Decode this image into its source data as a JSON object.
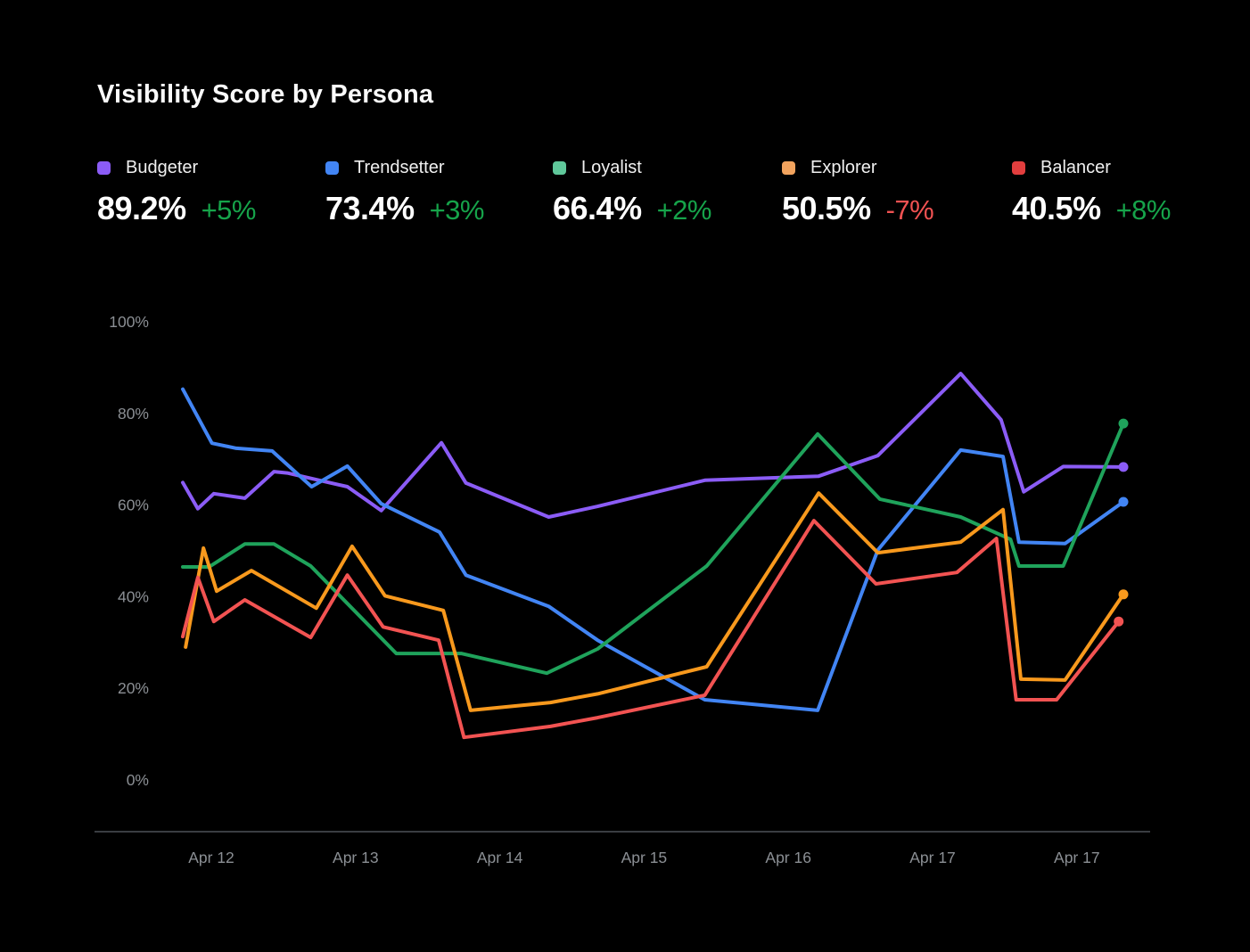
{
  "title": "Visibility Score by Persona",
  "colors": {
    "background": "#000000",
    "title_text": "#fafafa",
    "value_text": "#ffffff",
    "label_text": "#f0f0f0",
    "delta_up": "#16a34a",
    "delta_down": "#f05252",
    "axis_text": "#8b8f94",
    "axis_line": "#3a3d42"
  },
  "legend": [
    {
      "label": "Budgeter",
      "value": "89.2%",
      "delta": "+5%",
      "direction": "up",
      "swatch": "#8b5cf6"
    },
    {
      "label": "Trendsetter",
      "value": "73.4%",
      "delta": "+3%",
      "direction": "up",
      "swatch": "#4285f4"
    },
    {
      "label": "Loyalist",
      "value": "66.4%",
      "delta": "+2%",
      "direction": "up",
      "swatch": "#5fc79a"
    },
    {
      "label": "Explorer",
      "value": "50.5%",
      "delta": "-7%",
      "direction": "down",
      "swatch": "#f2a35e"
    },
    {
      "label": "Balancer",
      "value": "40.5%",
      "delta": "+8%",
      "direction": "up",
      "swatch": "#e23e3e"
    }
  ],
  "chart_data": {
    "type": "line",
    "title": "Visibility Score by Persona",
    "unit": "%",
    "grid": false,
    "y_axis": {
      "min": 0,
      "max": 100,
      "tick_step": 20,
      "tick_labels": [
        "0%",
        "20%",
        "40%",
        "60%",
        "80%",
        "100%"
      ]
    },
    "x_axis": {
      "tick_labels": [
        "Apr 12",
        "Apr 13",
        "Apr 14",
        "Apr 15",
        "Apr 16",
        "Apr 17",
        "Apr 17"
      ]
    },
    "point_format": "[x_percent_across_time_axis, visibility_percent]",
    "series": [
      {
        "name": "Budgeter",
        "color": "#8b5cf6",
        "end_dot": true,
        "points": [
          [
            0,
            64.9
          ],
          [
            1.6,
            59.2
          ],
          [
            3.3,
            62.5
          ],
          [
            6.6,
            61.5
          ],
          [
            9.7,
            67.3
          ],
          [
            11.1,
            67.0
          ],
          [
            17.5,
            64.0
          ],
          [
            21.1,
            58.8
          ],
          [
            27.5,
            73.6
          ],
          [
            30.1,
            64.8
          ],
          [
            38.9,
            57.4
          ],
          [
            44.1,
            59.7
          ],
          [
            55.5,
            65.4
          ],
          [
            67.6,
            66.3
          ],
          [
            73.9,
            70.8
          ],
          [
            82.7,
            88.7
          ],
          [
            87.0,
            78.6
          ],
          [
            89.4,
            62.9
          ],
          [
            93.6,
            68.4
          ],
          [
            100,
            68.3
          ]
        ]
      },
      {
        "name": "Trendsetter",
        "color": "#4285f4",
        "end_dot": true,
        "points": [
          [
            0,
            85.3
          ],
          [
            3.1,
            73.5
          ],
          [
            5.7,
            72.4
          ],
          [
            9.5,
            71.8
          ],
          [
            13.7,
            64.0
          ],
          [
            17.5,
            68.5
          ],
          [
            21.1,
            60.3
          ],
          [
            27.3,
            54.1
          ],
          [
            30.1,
            44.7
          ],
          [
            38.9,
            37.9
          ],
          [
            44.1,
            30.5
          ],
          [
            55.5,
            17.5
          ],
          [
            67.5,
            15.2
          ],
          [
            73.9,
            50.2
          ],
          [
            82.7,
            72.0
          ],
          [
            87.2,
            70.6
          ],
          [
            88.9,
            51.9
          ],
          [
            93.8,
            51.6
          ],
          [
            100,
            60.7
          ]
        ]
      },
      {
        "name": "Loyalist",
        "color": "#1fa35b",
        "end_dot": true,
        "points": [
          [
            0,
            46.5
          ],
          [
            2.8,
            46.5
          ],
          [
            6.6,
            51.5
          ],
          [
            9.7,
            51.5
          ],
          [
            13.6,
            46.7
          ],
          [
            22.7,
            27.6
          ],
          [
            29.6,
            27.6
          ],
          [
            38.7,
            23.3
          ],
          [
            44.1,
            28.6
          ],
          [
            55.7,
            46.7
          ],
          [
            67.5,
            75.5
          ],
          [
            74.1,
            61.3
          ],
          [
            82.7,
            57.4
          ],
          [
            88.0,
            52.5
          ],
          [
            88.9,
            46.7
          ],
          [
            93.6,
            46.7
          ],
          [
            100,
            77.8
          ]
        ]
      },
      {
        "name": "Explorer",
        "color": "#f8991d",
        "end_dot": true,
        "points": [
          [
            0.3,
            29.0
          ],
          [
            2.2,
            50.6
          ],
          [
            3.6,
            41.2
          ],
          [
            7.3,
            45.7
          ],
          [
            14.2,
            37.5
          ],
          [
            18.0,
            51.0
          ],
          [
            21.5,
            40.2
          ],
          [
            27.7,
            37.0
          ],
          [
            30.6,
            15.2
          ],
          [
            39.1,
            16.9
          ],
          [
            44.1,
            18.8
          ],
          [
            55.7,
            24.7
          ],
          [
            67.6,
            62.6
          ],
          [
            73.9,
            49.6
          ],
          [
            82.7,
            51.9
          ],
          [
            87.2,
            59.0
          ],
          [
            89.1,
            22.0
          ],
          [
            93.8,
            21.8
          ],
          [
            100,
            40.5
          ]
        ]
      },
      {
        "name": "Balancer",
        "color": "#f25352",
        "end_dot": true,
        "points": [
          [
            0,
            31.3
          ],
          [
            1.6,
            44.2
          ],
          [
            3.3,
            34.6
          ],
          [
            6.6,
            39.3
          ],
          [
            13.6,
            31.1
          ],
          [
            17.5,
            44.7
          ],
          [
            21.3,
            33.4
          ],
          [
            27.2,
            30.5
          ],
          [
            29.9,
            9.3
          ],
          [
            39.1,
            11.7
          ],
          [
            44.1,
            13.6
          ],
          [
            55.5,
            18.5
          ],
          [
            67.1,
            56.6
          ],
          [
            73.7,
            42.8
          ],
          [
            82.3,
            45.3
          ],
          [
            86.5,
            52.7
          ],
          [
            88.6,
            17.5
          ],
          [
            92.9,
            17.5
          ],
          [
            99.5,
            34.6
          ]
        ]
      }
    ]
  }
}
